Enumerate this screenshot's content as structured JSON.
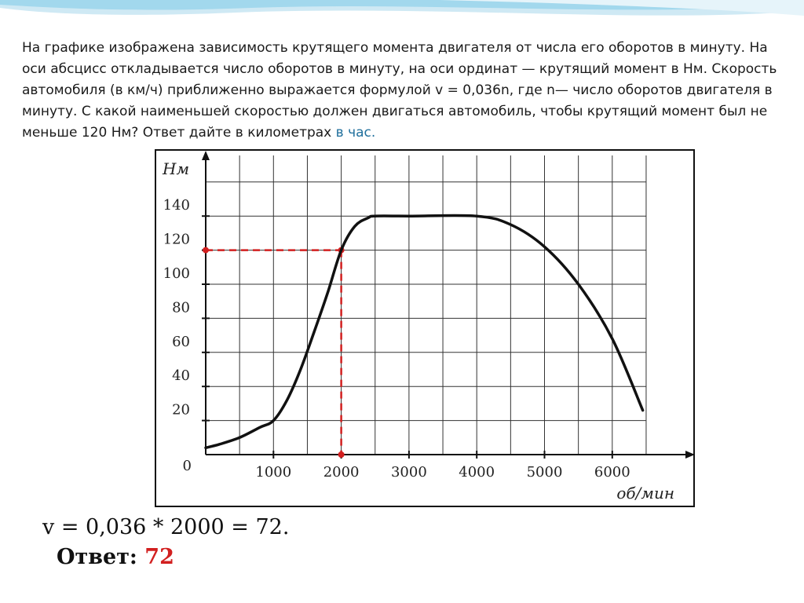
{
  "colors": {
    "curve": "#111111",
    "grid": "#333333",
    "guide": "#d21f1f",
    "accent": "#1f6f9c",
    "wave_light": "#cfe9f4",
    "wave_mid": "#8fd0ea"
  },
  "problem": {
    "text_main": "На графике изображена зависимость крутящего момента двигателя от числа его оборотов в минуту. На оси абсцисс откладывается число оборотов в минуту, на оси ординат — крутящий момент в Нм. Скорость автомобиля (в км/ч) приближенно выражается формулой  v = 0,036n, где n— число оборотов двигателя в минуту. С какой наименьшей скоростью должен двигаться автомобиль, чтобы крутящий момент был не меньше 120 Нм? Ответ дайте в километрах ",
    "text_accent": "в час."
  },
  "solution": {
    "formula": "v = 0,036 * 2000 = 72.",
    "answer_label": "Ответ: ",
    "answer_value": "72"
  },
  "chart_data": {
    "type": "line",
    "ylabel": "Нм",
    "xlabel": "об/мин",
    "origin_label": "0",
    "xlim": [
      0,
      7200
    ],
    "ylim": [
      0,
      160
    ],
    "x_ticks": [
      1000,
      2000,
      3000,
      4000,
      5000,
      6000
    ],
    "x_tick_labels": [
      "1000",
      "2000",
      "3000",
      "4000",
      "5000",
      "6000"
    ],
    "y_ticks": [
      20,
      40,
      60,
      80,
      100,
      120,
      140
    ],
    "y_tick_labels": [
      "20",
      "40",
      "60",
      "80",
      "100",
      "120",
      "140"
    ],
    "grid": true,
    "grid_step": {
      "x": 500,
      "y": 20
    },
    "series": [
      {
        "x": [
          0,
          200,
          500,
          800,
          1000,
          1200,
          1400,
          1600,
          1800,
          2000,
          2200,
          2400,
          2500,
          3000,
          4000,
          4500,
          5000,
          5500,
          6000,
          6450
        ],
        "values": [
          4,
          6,
          10,
          16,
          20,
          32,
          50,
          72,
          95,
          120,
          134,
          139,
          140,
          140,
          140,
          135,
          122,
          100,
          68,
          26
        ]
      }
    ],
    "guide": {
      "x": 2000,
      "y": 120
    }
  }
}
